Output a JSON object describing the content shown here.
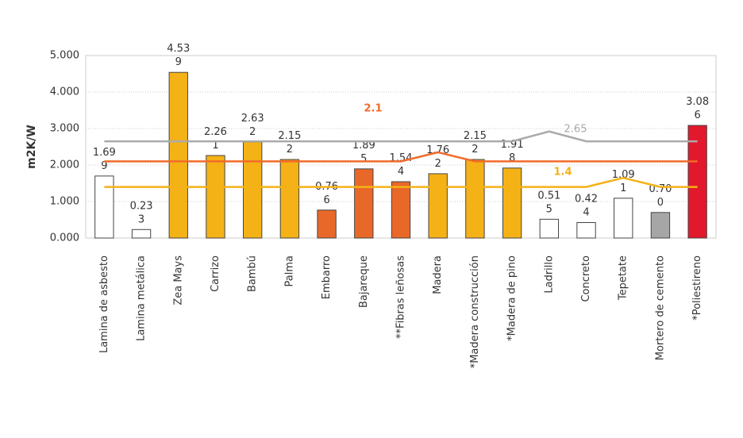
{
  "chart_data": {
    "type": "bar",
    "y_label": "m2K/W",
    "categories": [
      "Lamina de asbesto",
      "Lamina metálica",
      "Zea Mays",
      "Carrizo",
      "Bambú",
      "Palma",
      "Embarro",
      "Bajareque",
      "**Fibras leñosas",
      "Madera",
      "*Madera construcción",
      "*Madera de pino",
      "Ladrillo",
      "Concreto",
      "Tepetate",
      "Mortero de cemento",
      "*Poliestireno"
    ],
    "values": [
      1.699,
      0.233,
      4.539,
      2.261,
      2.632,
      2.152,
      0.766,
      1.895,
      1.544,
      1.762,
      2.152,
      1.918,
      0.515,
      0.424,
      1.091,
      0.7,
      3.086
    ],
    "value_labels": [
      "1.699",
      "0.233",
      "4.539",
      "2.261",
      "2.632",
      "2.152",
      "0.766",
      "1.895",
      "1.544",
      "1.762",
      "2.152",
      "1.918",
      "0.515",
      "0.424",
      "1.091",
      "0.700",
      "3.086"
    ],
    "colors": [
      "#ffffff",
      "#ffffff",
      "#f5b216",
      "#f5b216",
      "#f5b216",
      "#f5b216",
      "#e8682a",
      "#e8682a",
      "#e8682a",
      "#f5b216",
      "#f5b216",
      "#f5b216",
      "#ffffff",
      "#ffffff",
      "#ffffff",
      "#a6a6a6",
      "#e2182d"
    ],
    "lines": [
      {
        "label": "2.65",
        "color": "#aaaaaa",
        "values": [
          2.65,
          2.65,
          2.65,
          2.65,
          2.65,
          2.65,
          2.65,
          2.65,
          2.65,
          2.65,
          2.65,
          2.65,
          2.92,
          2.65,
          2.65,
          2.65,
          2.65
        ]
      },
      {
        "label": "2.1",
        "color": "#f26b2a",
        "values": [
          2.1,
          2.1,
          2.1,
          2.1,
          2.1,
          2.1,
          2.1,
          2.1,
          2.1,
          2.35,
          2.1,
          2.1,
          2.1,
          2.1,
          2.1,
          2.1,
          2.1
        ]
      },
      {
        "label": "1.4",
        "color": "#f5b216",
        "values": [
          1.4,
          1.4,
          1.4,
          1.4,
          1.4,
          1.4,
          1.4,
          1.4,
          1.4,
          1.4,
          1.4,
          1.4,
          1.4,
          1.4,
          1.65,
          1.4,
          1.4
        ]
      }
    ],
    "ylim": [
      0,
      5
    ],
    "yticks": [
      {
        "value": 0,
        "label": "0.000"
      },
      {
        "value": 1,
        "label": "1.000"
      },
      {
        "value": 2,
        "label": "2.000"
      },
      {
        "value": 3,
        "label": "3.000"
      },
      {
        "value": 4,
        "label": "4.000"
      },
      {
        "value": 5,
        "label": "5.000"
      }
    ],
    "grid": true
  }
}
